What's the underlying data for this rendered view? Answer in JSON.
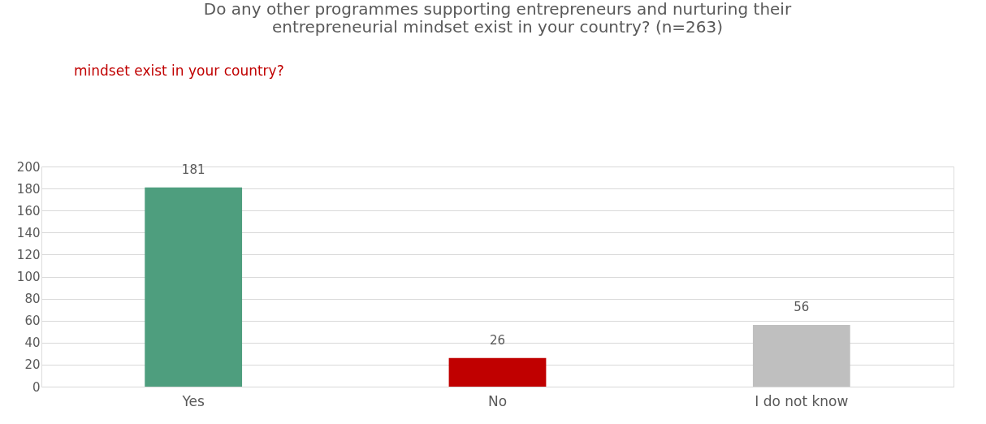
{
  "chart_data": {
    "type": "bar",
    "title": [
      "Do any other programmes supporting entrepreneurs and nurturing their",
      "entrepreneurial mindset exist in your country? (n=263)"
    ],
    "annotations": [
      "mindset exist in your country?"
    ],
    "categories": [
      "Yes",
      "No",
      "I do not know"
    ],
    "values": [
      181,
      26,
      56
    ],
    "colors": [
      "#4e9e7e",
      "#c00000",
      "#bfbfbf"
    ],
    "ylim": [
      0,
      200
    ],
    "yticks": [
      0,
      20,
      40,
      60,
      80,
      100,
      120,
      140,
      160,
      180,
      200
    ],
    "grid": "y",
    "data_labels": true
  }
}
